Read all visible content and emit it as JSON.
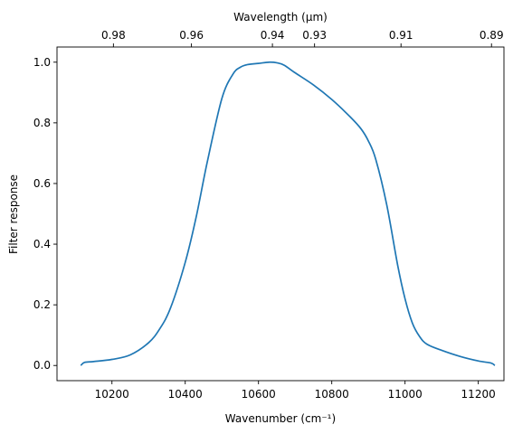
{
  "chart_data": {
    "type": "line",
    "title": "",
    "xlabel": "Wavenumber (cm⁻¹)",
    "ylabel": "Filter response",
    "top_xlabel": "Wavelength (μm)",
    "xlim": [
      10050,
      11270
    ],
    "ylim": [
      -0.05,
      1.05
    ],
    "x_ticks": [
      {
        "value": 10200,
        "label": "10200"
      },
      {
        "value": 10400,
        "label": "10400"
      },
      {
        "value": 10600,
        "label": "10600"
      },
      {
        "value": 10800,
        "label": "10800"
      },
      {
        "value": 11000,
        "label": "11000"
      },
      {
        "value": 11200,
        "label": "11200"
      }
    ],
    "y_ticks": [
      {
        "value": 0.0,
        "label": "0.0"
      },
      {
        "value": 0.2,
        "label": "0.2"
      },
      {
        "value": 0.4,
        "label": "0.4"
      },
      {
        "value": 0.6,
        "label": "0.6"
      },
      {
        "value": 0.8,
        "label": "0.8"
      },
      {
        "value": 1.0,
        "label": "1.0"
      }
    ],
    "top_ticks": [
      {
        "wavenumber": 10204,
        "label": "0.98"
      },
      {
        "wavenumber": 10417,
        "label": "0.96"
      },
      {
        "wavenumber": 10638,
        "label": "0.94"
      },
      {
        "wavenumber": 10753,
        "label": "0.93"
      },
      {
        "wavenumber": 10989,
        "label": "0.91"
      },
      {
        "wavenumber": 11236,
        "label": "0.89"
      }
    ],
    "grid": false,
    "color": "#1f77b4",
    "series": [
      {
        "x": [
          10115,
          10125,
          10150,
          10200,
          10250,
          10300,
          10330,
          10360,
          10400,
          10430,
          10460,
          10500,
          10530,
          10550,
          10570,
          10600,
          10630,
          10650,
          10670,
          10700,
          10750,
          10800,
          10850,
          10880,
          10900,
          10920,
          10950,
          10980,
          11000,
          11020,
          11040,
          11060,
          11100,
          11150,
          11200,
          11235,
          11245
        ],
        "y": [
          0.0,
          0.01,
          0.013,
          0.02,
          0.035,
          0.075,
          0.12,
          0.19,
          0.34,
          0.49,
          0.67,
          0.88,
          0.96,
          0.983,
          0.992,
          0.996,
          1.0,
          0.998,
          0.99,
          0.965,
          0.925,
          0.877,
          0.82,
          0.78,
          0.74,
          0.68,
          0.53,
          0.33,
          0.22,
          0.14,
          0.095,
          0.07,
          0.05,
          0.03,
          0.015,
          0.008,
          0.0
        ]
      }
    ]
  }
}
